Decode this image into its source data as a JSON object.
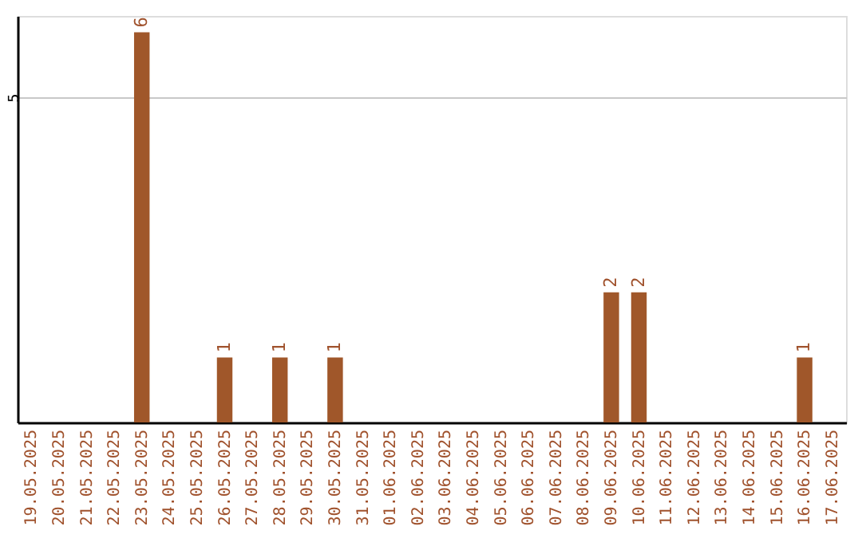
{
  "chart_data": {
    "type": "bar",
    "categories": [
      "19.05.2025",
      "20.05.2025",
      "21.05.2025",
      "22.05.2025",
      "23.05.2025",
      "24.05.2025",
      "25.05.2025",
      "26.05.2025",
      "27.05.2025",
      "28.05.2025",
      "29.05.2025",
      "30.05.2025",
      "31.05.2025",
      "01.06.2025",
      "02.06.2025",
      "03.06.2025",
      "04.06.2025",
      "05.06.2025",
      "06.06.2025",
      "07.06.2025",
      "08.06.2025",
      "09.06.2025",
      "10.06.2025",
      "11.06.2025",
      "12.06.2025",
      "13.06.2025",
      "14.06.2025",
      "15.06.2025",
      "16.06.2025",
      "17.06.2025"
    ],
    "values": [
      0,
      0,
      0,
      0,
      6,
      0,
      0,
      1,
      0,
      1,
      0,
      1,
      0,
      0,
      0,
      0,
      0,
      0,
      0,
      0,
      0,
      2,
      2,
      0,
      0,
      0,
      0,
      0,
      1,
      0
    ],
    "value_labels": [
      null,
      null,
      null,
      null,
      "6",
      null,
      null,
      "1",
      null,
      "1",
      null,
      "1",
      null,
      null,
      null,
      null,
      null,
      null,
      null,
      null,
      null,
      "2",
      "2",
      null,
      null,
      null,
      null,
      null,
      "1",
      null
    ],
    "color": "#a0572a",
    "ylim": [
      0,
      6.25
    ],
    "yticks": [
      5
    ],
    "grid": "y"
  }
}
